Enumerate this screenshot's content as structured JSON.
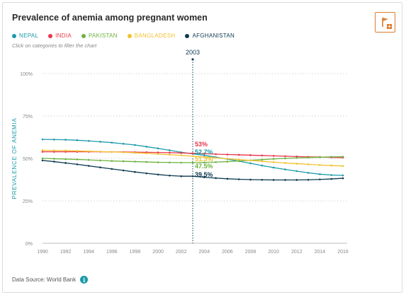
{
  "title": "Prevalence of anemia among pregnant women",
  "hint": "Click on categories to filter the chart",
  "source": "Data Source: World Bank",
  "icons": {
    "flag": "flag-icon",
    "info": "info-icon"
  },
  "colors": {
    "accent": "#e07b2a",
    "info": "#1b9aa9"
  },
  "chart_data": {
    "type": "line",
    "title": "Prevalence of anemia among pregnant women",
    "xlabel": "",
    "ylabel": "PREVALENCE OF ANEMIA",
    "x": [
      1990,
      1991,
      1992,
      1993,
      1994,
      1995,
      1996,
      1997,
      1998,
      1999,
      2000,
      2001,
      2002,
      2003,
      2004,
      2005,
      2006,
      2007,
      2008,
      2009,
      2010,
      2011,
      2012,
      2013,
      2014,
      2015,
      2016
    ],
    "xticks": [
      1990,
      1992,
      1994,
      1996,
      1998,
      2000,
      2002,
      2004,
      2006,
      2008,
      2010,
      2012,
      2014,
      2016
    ],
    "yticks": [
      0,
      25,
      50,
      75,
      100
    ],
    "ytick_labels": [
      "0%",
      "25%",
      "50%",
      "75%",
      "100%"
    ],
    "xlim": [
      1990,
      2016
    ],
    "ylim": [
      0,
      100
    ],
    "grid": "horizontal dotted",
    "legend": "top-left",
    "highlight_year": 2003,
    "highlight_label": "2003",
    "series": [
      {
        "name": "NEPAL",
        "color": "#1b9aa9",
        "values": [
          61.2,
          61.1,
          61.0,
          60.7,
          60.3,
          59.8,
          59.3,
          58.6,
          57.9,
          56.9,
          55.9,
          54.8,
          53.6,
          52.7,
          51.8,
          50.7,
          49.6,
          48.4,
          47.1,
          45.8,
          44.6,
          43.5,
          42.5,
          41.5,
          40.7,
          40.2,
          40.0
        ],
        "tooltip": "52.7%"
      },
      {
        "name": "INDIA",
        "color": "#e8364b",
        "values": [
          53.9,
          53.9,
          53.9,
          53.9,
          53.9,
          53.9,
          53.8,
          53.8,
          53.7,
          53.6,
          53.5,
          53.4,
          53.2,
          53.0,
          52.8,
          52.5,
          52.3,
          52.1,
          51.9,
          51.7,
          51.5,
          51.3,
          51.1,
          50.9,
          50.8,
          50.6,
          50.5
        ],
        "tooltip": "53%"
      },
      {
        "name": "PAKISTAN",
        "color": "#6cb33f",
        "values": [
          50.0,
          49.8,
          49.6,
          49.4,
          49.1,
          48.8,
          48.5,
          48.3,
          48.1,
          47.9,
          47.7,
          47.6,
          47.5,
          47.5,
          47.6,
          47.8,
          48.1,
          48.5,
          48.9,
          49.3,
          49.7,
          50.0,
          50.3,
          50.5,
          50.7,
          50.9,
          51.0
        ],
        "tooltip": "47.5%"
      },
      {
        "name": "BANGLADESH",
        "color": "#f2c12e",
        "values": [
          54.8,
          54.7,
          54.6,
          54.4,
          54.2,
          54.0,
          53.8,
          53.6,
          53.3,
          53.0,
          52.6,
          52.2,
          51.8,
          51.3,
          50.8,
          50.3,
          49.8,
          49.3,
          48.8,
          48.3,
          47.8,
          47.3,
          46.9,
          46.5,
          46.1,
          45.8,
          45.5
        ],
        "tooltip": "51.3%"
      },
      {
        "name": "AFGHANISTAN",
        "color": "#0c3a4f",
        "values": [
          48.8,
          48.1,
          47.3,
          46.5,
          45.6,
          44.7,
          43.8,
          42.9,
          42.0,
          41.2,
          40.5,
          39.9,
          39.5,
          39.5,
          38.9,
          38.4,
          38.0,
          37.7,
          37.5,
          37.4,
          37.3,
          37.3,
          37.3,
          37.4,
          37.6,
          37.9,
          38.3
        ],
        "tooltip": "39.5%"
      }
    ]
  }
}
